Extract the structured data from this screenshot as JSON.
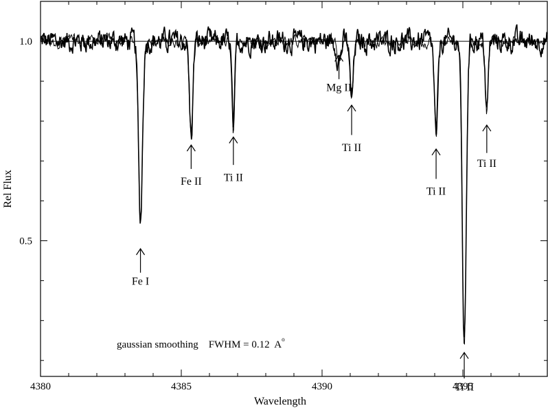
{
  "chart_data": {
    "type": "line",
    "xlabel": "Wavelength",
    "ylabel": "Rel Flux",
    "xlim": [
      4380,
      4398
    ],
    "ylim": [
      0.16,
      1.1
    ],
    "xticks": [
      {
        "value": 4380,
        "label": "4380"
      },
      {
        "value": 4385,
        "label": "4385"
      },
      {
        "value": 4390,
        "label": "4390"
      },
      {
        "value": 4395,
        "label": "4395"
      }
    ],
    "yticks": [
      {
        "value": 0.5,
        "label": "0.5"
      },
      {
        "value": 1.0,
        "label": "1.0"
      }
    ],
    "continuum": 1.0,
    "note": {
      "text": "gaussian smoothing    FWHM = 0.12  A",
      "unit_mark": "o"
    },
    "series": [
      {
        "lines": [
          {
            "wavelength": 4383.55,
            "depth": 0.45,
            "width": 0.07,
            "label": "Fe I"
          },
          {
            "wavelength": 4385.35,
            "depth": 0.24,
            "width": 0.06,
            "label": "Fe II"
          },
          {
            "wavelength": 4386.85,
            "depth": 0.22,
            "width": 0.05,
            "label": "Ti II"
          },
          {
            "wavelength": 4390.6,
            "depth": 0.05,
            "width": 0.07,
            "label": "Mg II"
          },
          {
            "wavelength": 4391.05,
            "depth": 0.14,
            "width": 0.06,
            "label": "Ti II"
          },
          {
            "wavelength": 4394.05,
            "depth": 0.24,
            "width": 0.06,
            "label": "Ti II"
          },
          {
            "wavelength": 4395.05,
            "depth": 0.76,
            "width": 0.07,
            "label": "Ti II"
          },
          {
            "wavelength": 4395.85,
            "depth": 0.18,
            "width": 0.05,
            "label": "Ti II"
          }
        ]
      }
    ],
    "annotations": [
      {
        "label": "Fe I",
        "wavelength": 4383.55,
        "arrow_tip": 0.48,
        "arrow_tail": 0.42,
        "text_y": 0.39
      },
      {
        "label": "Fe II",
        "wavelength": 4385.35,
        "arrow_tip": 0.74,
        "arrow_tail": 0.68,
        "text_y": 0.64
      },
      {
        "label": "Ti II",
        "wavelength": 4386.85,
        "arrow_tip": 0.76,
        "arrow_tail": 0.69,
        "text_y": 0.65
      },
      {
        "label": "Mg II",
        "wavelength": 4390.6,
        "arrow_tip": 0.965,
        "arrow_tail": 0.905,
        "text_y": 0.875
      },
      {
        "label": "Ti II",
        "wavelength": 4391.05,
        "arrow_tip": 0.84,
        "arrow_tail": 0.765,
        "text_y": 0.725
      },
      {
        "label": "Ti II",
        "wavelength": 4394.05,
        "arrow_tip": 0.73,
        "arrow_tail": 0.655,
        "text_y": 0.615
      },
      {
        "label": "Ti II",
        "wavelength": 4395.05,
        "arrow_tip": 0.22,
        "arrow_tail": 0.155,
        "text_y": 0.125
      },
      {
        "label": "Ti II",
        "wavelength": 4395.85,
        "arrow_tip": 0.79,
        "arrow_tail": 0.72,
        "text_y": 0.685
      }
    ]
  }
}
